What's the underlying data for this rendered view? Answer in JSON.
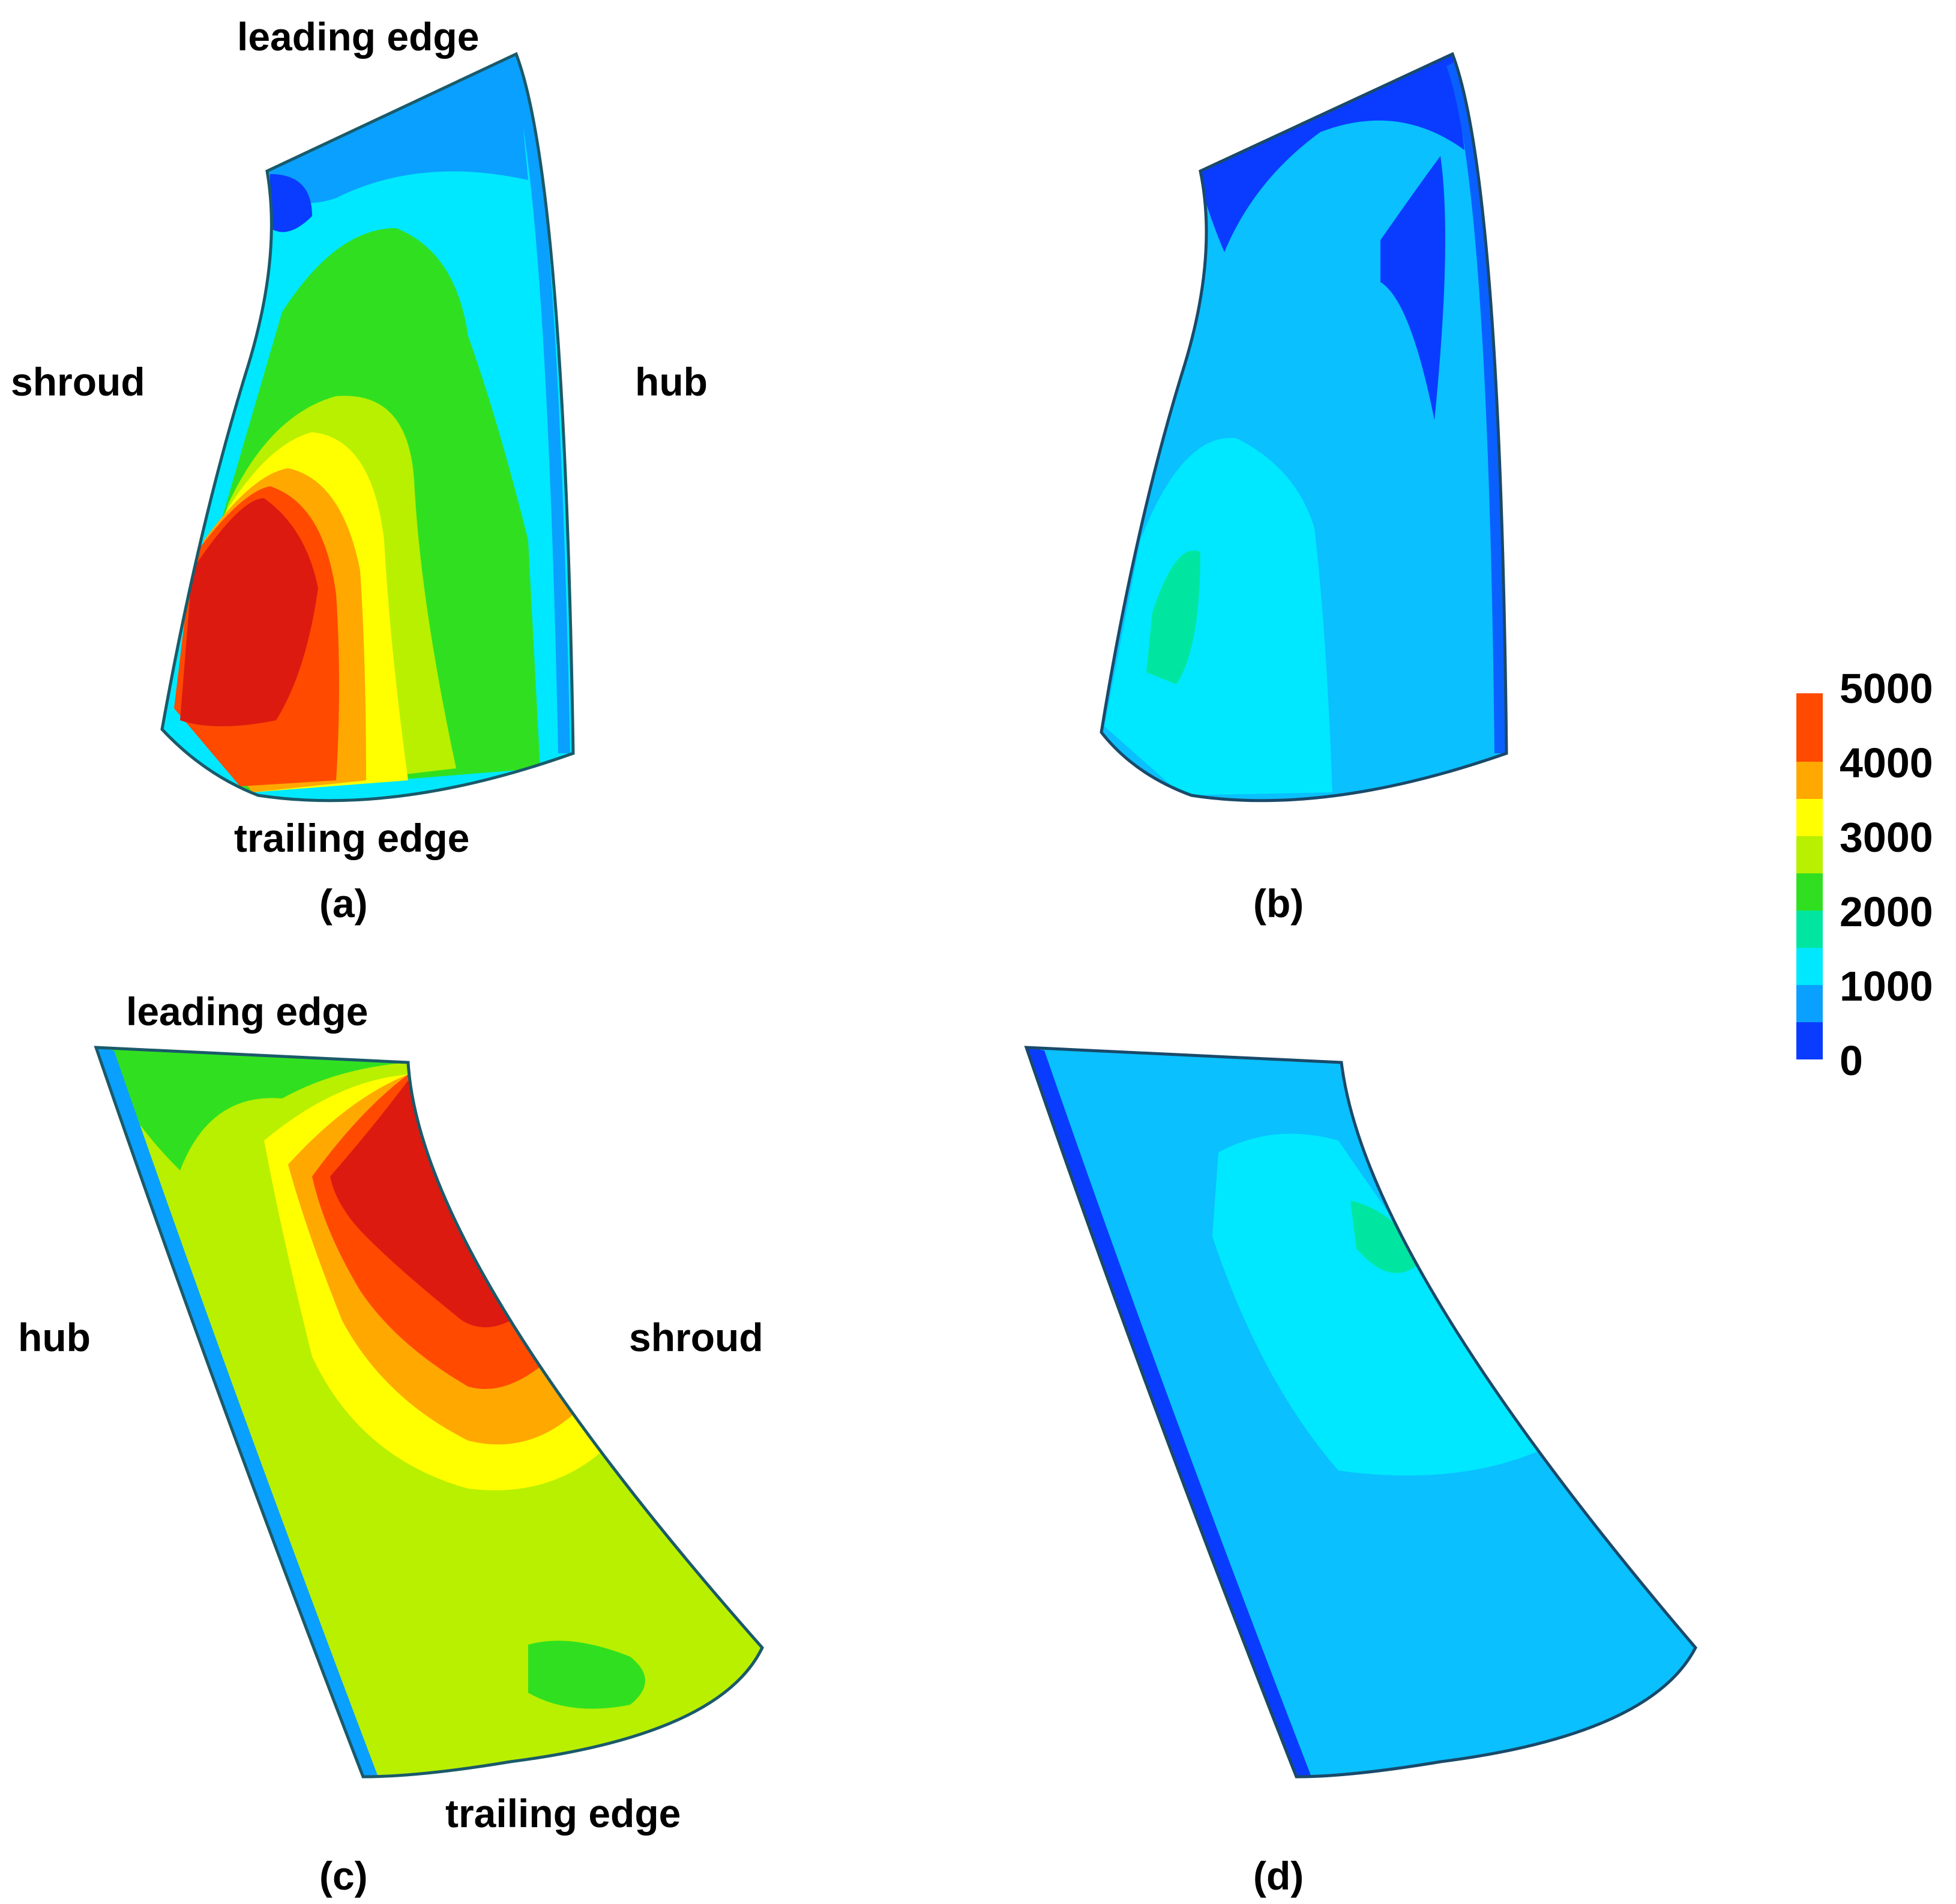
{
  "panels": {
    "a": {
      "caption": "(a)",
      "labels": {
        "top": "leading edge",
        "left": "shroud",
        "right": "hub",
        "bottom": "trailing edge"
      }
    },
    "b": {
      "caption": "(b)"
    },
    "c": {
      "caption": "(c)",
      "labels": {
        "top": "leading edge",
        "left": "hub",
        "right": "shroud",
        "bottom": "trailing edge"
      }
    },
    "d": {
      "caption": "(d)"
    }
  },
  "colorbar": {
    "ticks": [
      "5000",
      "4000",
      "3000",
      "2000",
      "1000",
      "0"
    ],
    "levels": [
      {
        "color": "#0a3cff"
      },
      {
        "color": "#0aa0ff"
      },
      {
        "color": "#00e8ff"
      },
      {
        "color": "#00e6a0"
      },
      {
        "color": "#30e020"
      },
      {
        "color": "#b8f000"
      },
      {
        "color": "#ffff00"
      },
      {
        "color": "#ffa800"
      },
      {
        "color": "#ff4a00"
      }
    ]
  }
}
